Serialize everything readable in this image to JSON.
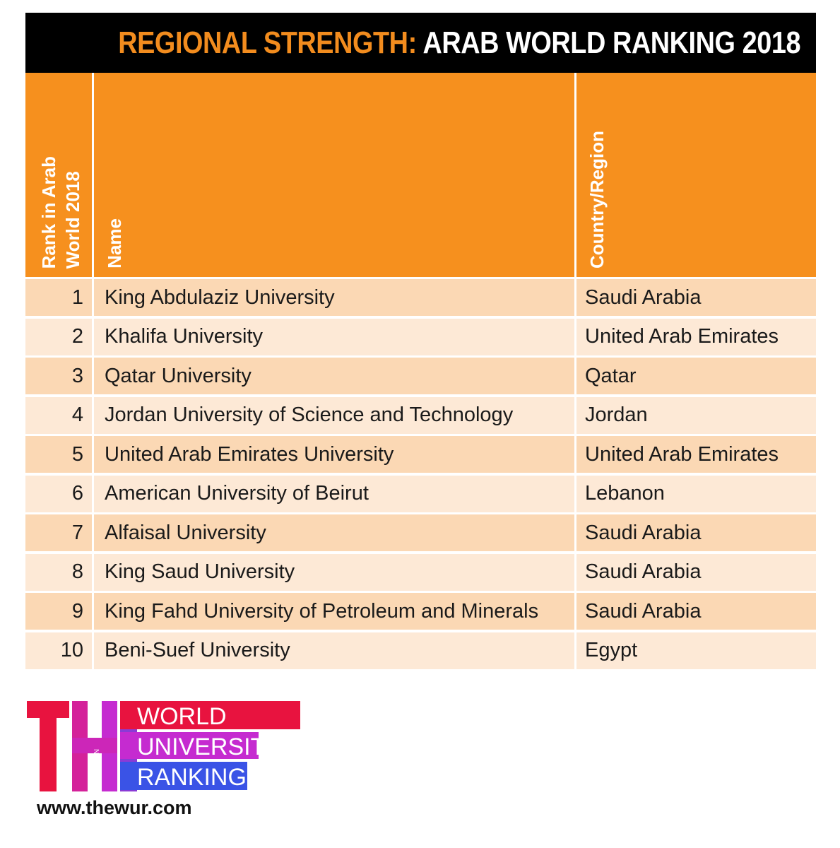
{
  "title": {
    "accent": "REGIONAL STRENGTH:",
    "main": "ARAB WORLD RANKING 2018"
  },
  "columns": {
    "rank": "Rank in Arab\nWorld 2018",
    "name": "Name",
    "country": "Country/Region"
  },
  "chart_data": {
    "type": "table",
    "columns": [
      "Rank in Arab World 2018",
      "Name",
      "Country/Region"
    ],
    "rows": [
      {
        "rank": "1",
        "name": "King Abdulaziz University",
        "country": "Saudi Arabia"
      },
      {
        "rank": "2",
        "name": "Khalifa University",
        "country": "United Arab Emirates"
      },
      {
        "rank": "3",
        "name": "Qatar University",
        "country": "Qatar"
      },
      {
        "rank": "4",
        "name": "Jordan University of Science and Technology",
        "country": "Jordan"
      },
      {
        "rank": "5",
        "name": "United Arab Emirates University",
        "country": "United Arab Emirates"
      },
      {
        "rank": "6",
        "name": "American University of Beirut",
        "country": "Lebanon"
      },
      {
        "rank": "7",
        "name": "Alfaisal University",
        "country": "Saudi Arabia"
      },
      {
        "rank": "8",
        "name": "King Saud University",
        "country": "Saudi Arabia"
      },
      {
        "rank": "9",
        "name": "King Fahd University of Petroleum and Minerals",
        "country": "Saudi Arabia"
      },
      {
        "rank": "10",
        "name": "Beni-Suef University",
        "country": "Egypt"
      }
    ]
  },
  "logo": {
    "letters": "THE",
    "small_words": [
      "TIMES",
      "HIGHER",
      "EDUCATION"
    ],
    "lines": [
      "WORLD",
      "UNIVERSITY",
      "RANKINGS"
    ],
    "colors": {
      "red": "#e8133f",
      "magenta": "#c52bd0",
      "purple": "#8a3bd6",
      "blue": "#3a53e6"
    }
  },
  "url": "www.thewur.com"
}
